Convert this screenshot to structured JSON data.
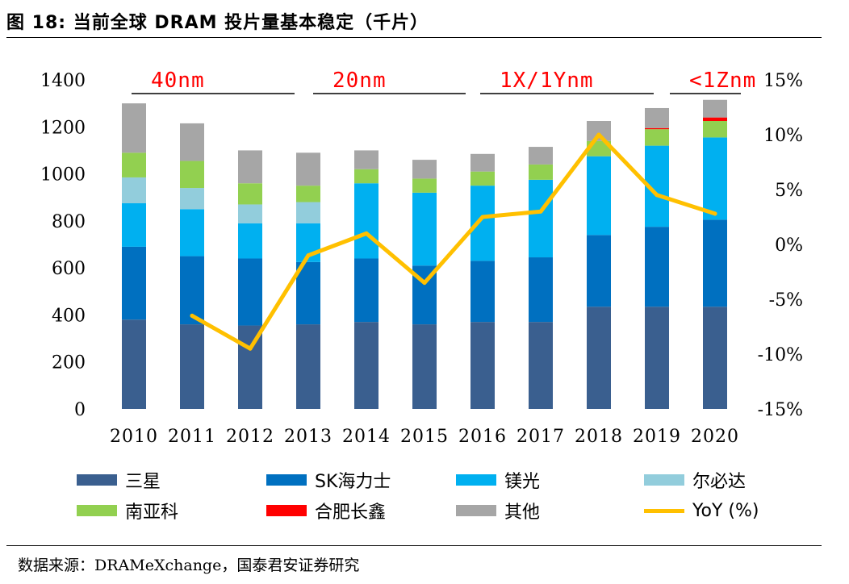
{
  "header": {
    "title": "图 18:  当前全球 DRAM 投片量基本稳定（千片）"
  },
  "footer": {
    "source": "数据来源：DRAMeXchange，国泰君安证券研究"
  },
  "chart_data": {
    "type": "bar",
    "stacked": true,
    "categories": [
      "2010",
      "2011",
      "2012",
      "2013",
      "2014",
      "2015",
      "2016",
      "2017",
      "2018",
      "2019",
      "2020"
    ],
    "ylim": [
      0,
      1400
    ],
    "yticks": [
      "0",
      "200",
      "400",
      "600",
      "800",
      "1000",
      "1200",
      "1400"
    ],
    "y2lim": [
      -15,
      15
    ],
    "y2ticks": [
      "-15%",
      "-10%",
      "-5%",
      "0%",
      "5%",
      "10%",
      "15%"
    ],
    "series": [
      {
        "name": "三星",
        "color": "#3A5F8F",
        "values": [
          380,
          360,
          355,
          360,
          370,
          360,
          370,
          370,
          435,
          435,
          435
        ]
      },
      {
        "name": "SK海力士",
        "color": "#0070C0",
        "values": [
          310,
          290,
          285,
          265,
          270,
          250,
          260,
          275,
          305,
          340,
          370
        ]
      },
      {
        "name": "镁光",
        "color": "#00B0F0",
        "values": [
          185,
          200,
          150,
          165,
          320,
          310,
          320,
          330,
          335,
          345,
          350
        ]
      },
      {
        "name": "尔必达",
        "color": "#92CDDC",
        "values": [
          110,
          90,
          80,
          90,
          0,
          0,
          0,
          0,
          0,
          0,
          0
        ]
      },
      {
        "name": "南亚科",
        "color": "#92D050",
        "values": [
          105,
          115,
          90,
          70,
          60,
          60,
          60,
          65,
          65,
          70,
          70
        ]
      },
      {
        "name": "合肥长鑫",
        "color": "#FF0000",
        "values": [
          0,
          0,
          0,
          0,
          0,
          0,
          0,
          0,
          0,
          5,
          15
        ]
      },
      {
        "name": "其他",
        "color": "#A6A6A6",
        "values": [
          210,
          160,
          140,
          140,
          80,
          80,
          75,
          75,
          85,
          85,
          75
        ]
      }
    ],
    "line_series": {
      "name": "YoY (%)",
      "color": "#FFC000",
      "axis": "right",
      "x": [
        "2011",
        "2012",
        "2013",
        "2014",
        "2015",
        "2016",
        "2017",
        "2018",
        "2019",
        "2020"
      ],
      "values": [
        -6.5,
        -9.5,
        -1.0,
        1.0,
        -3.5,
        2.5,
        3.0,
        10.0,
        4.5,
        2.8
      ]
    },
    "process_nodes": [
      {
        "label": "40nm",
        "color": "#FF0000"
      },
      {
        "label": "20nm",
        "color": "#FF0000"
      },
      {
        "label": "1X/1Ynm",
        "color": "#FF0000"
      },
      {
        "label": "<1Znm",
        "color": "#FF0000"
      }
    ],
    "grid": false,
    "legend_position": "bottom"
  }
}
